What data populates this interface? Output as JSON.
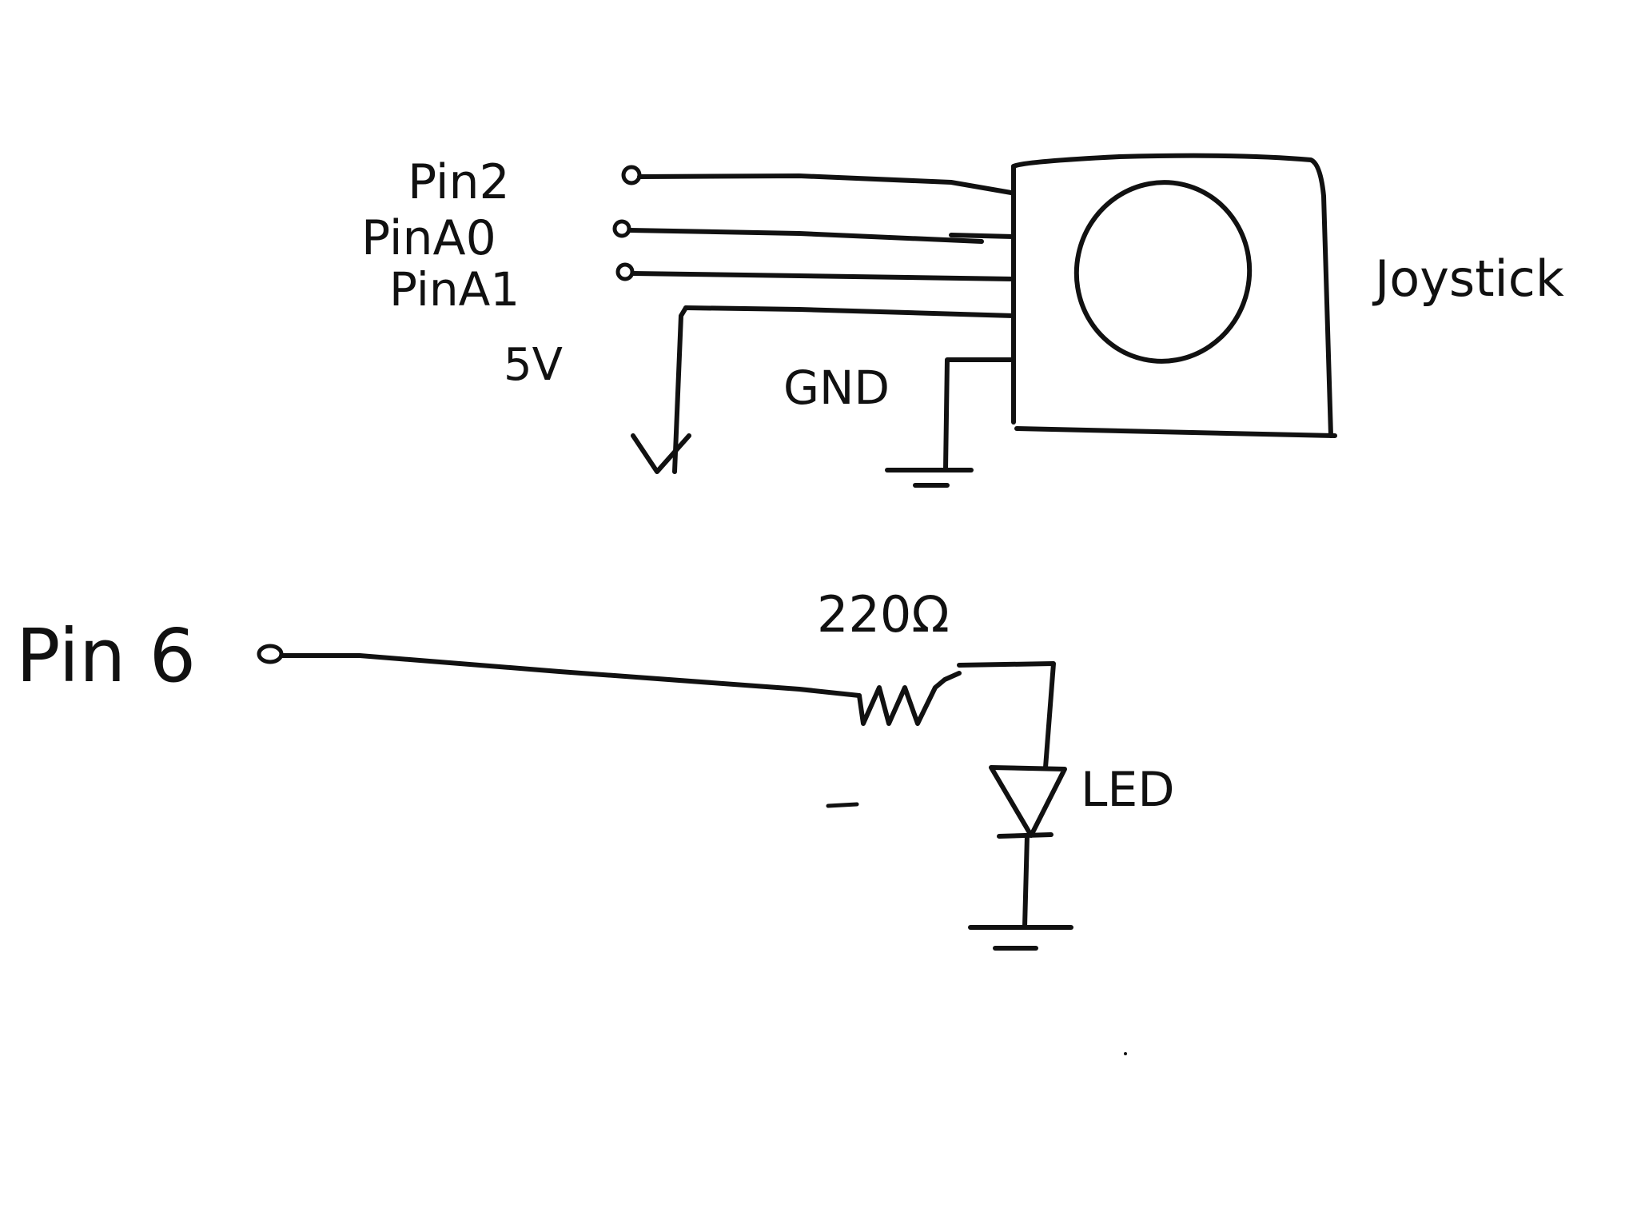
{
  "labels": {
    "pin2": "Pin2",
    "pina0": "PinA0",
    "pina1": "PinA1",
    "five_v": "5V",
    "gnd": "GND",
    "joystick": "Joystick",
    "pin6": "Pin 6",
    "resistor": "220Ω",
    "led": "LED"
  },
  "colors": {
    "ink": "#111111",
    "background": "#ffffff"
  },
  "icons": {
    "joystick": "joystick-module-icon",
    "resistor": "resistor-zigzag-icon",
    "led": "diode-triangle-icon",
    "ground": "ground-symbol-icon",
    "supply": "arrow-down-icon"
  }
}
